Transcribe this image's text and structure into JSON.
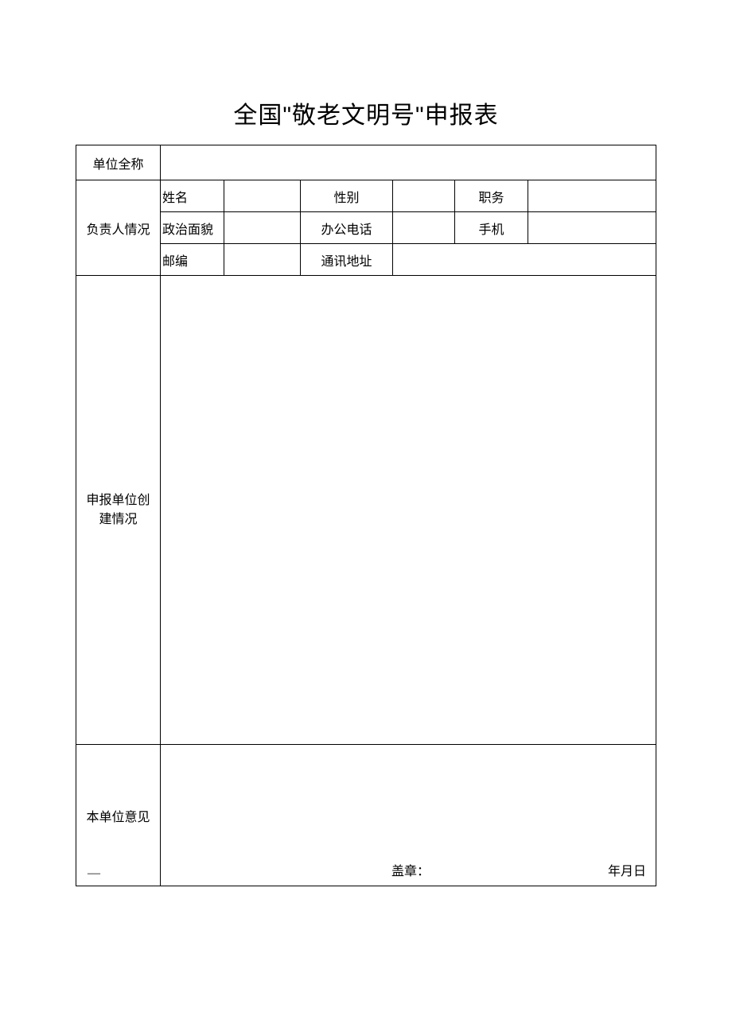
{
  "title": "全国\"敬老文明号\"申报表",
  "table": {
    "row1_label": "单位全称",
    "row2_label": "负责人情况",
    "row2": {
      "sub1a": "姓名",
      "sub1b": "性别",
      "sub1c": "职务",
      "sub2a": "政治面貌",
      "sub2b": "办公电话",
      "sub2c": "手机",
      "sub3a": "邮编",
      "sub3b": "通讯地址"
    },
    "row3_label_line1": "申报单位创",
    "row3_label_line2": "建情况",
    "row4_label": "本单位意见",
    "row4_dash": "—",
    "row4_seal": "盖章：",
    "row4_date": "年月日"
  },
  "style": {
    "border_color": "#000000",
    "background": "#ffffff",
    "title_fontsize": 30,
    "cell_fontsize": 16
  }
}
